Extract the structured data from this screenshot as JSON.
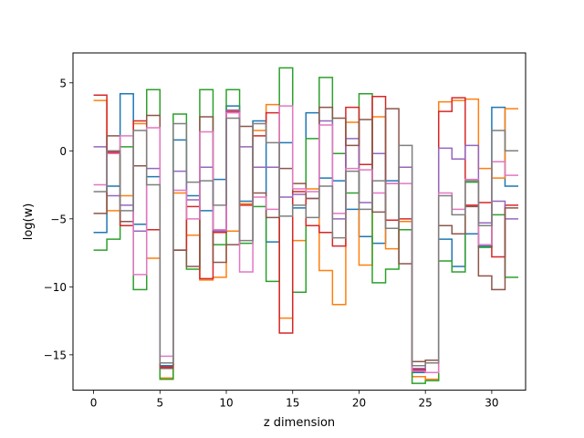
{
  "chart_data": {
    "type": "line",
    "step": "post",
    "xlabel": "z dimension",
    "ylabel": "log(w)",
    "xlim": [
      -1.55,
      32.55
    ],
    "ylim": [
      -17.6,
      7.2
    ],
    "xticks": [
      0,
      5,
      10,
      15,
      20,
      25,
      30
    ],
    "yticks": [
      5,
      0,
      -5,
      -10,
      -15
    ],
    "ytick_labels": [
      "5",
      "0",
      "−5",
      "−10",
      "−15"
    ],
    "grid": false,
    "legend": "none",
    "x": [
      0,
      1,
      2,
      3,
      4,
      5,
      6,
      7,
      8,
      9,
      10,
      11,
      12,
      13,
      14,
      15,
      16,
      17,
      18,
      19,
      20,
      21,
      22,
      23,
      24,
      25,
      26,
      27,
      28,
      29,
      30,
      31
    ],
    "series": [
      {
        "color": "#1f77b4",
        "values": [
          -6.0,
          -2.6,
          4.2,
          -5.4,
          -1.9,
          -15.8,
          0.8,
          -3.3,
          -4.4,
          -2.1,
          3.3,
          -3.7,
          2.2,
          -6.7,
          0.6,
          -4.2,
          2.8,
          -2.0,
          -2.2,
          -4.3,
          -6.3,
          -6.8,
          -2.2,
          -5.8,
          -16.3,
          -16.3,
          -6.5,
          -8.5,
          -6.1,
          -7.0,
          3.2,
          -2.6
        ]
      },
      {
        "color": "#ff7f0e",
        "values": [
          3.7,
          -4.4,
          -3.3,
          2.0,
          -7.9,
          -16.7,
          -3.1,
          -6.2,
          -9.5,
          -9.3,
          -5.9,
          -3.9,
          1.5,
          3.4,
          -12.3,
          -6.6,
          -2.8,
          -8.8,
          -11.3,
          2.1,
          -8.4,
          2.5,
          -7.2,
          -5.2,
          -16.6,
          -16.8,
          3.6,
          3.7,
          3.8,
          -1.3,
          -2.0,
          3.1
        ]
      },
      {
        "color": "#2ca02c",
        "values": [
          -7.3,
          -6.5,
          0.3,
          -10.2,
          4.5,
          -16.8,
          2.7,
          -8.7,
          4.5,
          -6.9,
          4.5,
          -6.8,
          -4.1,
          -9.6,
          6.1,
          -10.4,
          0.9,
          5.4,
          -0.2,
          -3.1,
          4.2,
          -9.7,
          -8.7,
          -5.8,
          -17.1,
          -16.9,
          -8.1,
          -8.9,
          -2.3,
          -7.1,
          -4.7,
          -9.3
        ]
      },
      {
        "color": "#d62728",
        "values": [
          4.1,
          -0.1,
          -5.5,
          2.2,
          -5.8,
          -15.9,
          -7.3,
          -4.1,
          -9.4,
          -6.0,
          2.9,
          -4.0,
          1.1,
          2.8,
          -13.4,
          -3.0,
          -5.5,
          -6.0,
          -7.0,
          3.2,
          -1.0,
          4.0,
          -5.1,
          -5.0,
          -16.1,
          -16.3,
          2.9,
          3.9,
          -4.0,
          -3.8,
          -7.8,
          -4.0
        ]
      },
      {
        "color": "#9467bd",
        "values": [
          0.3,
          -3.3,
          -4.0,
          -5.9,
          -1.3,
          -15.6,
          -1.5,
          -3.6,
          -1.2,
          -5.9,
          3.0,
          0.3,
          -1.2,
          -1.2,
          -3.4,
          -3.2,
          -3.5,
          2.2,
          -5.0,
          0.9,
          -3.8,
          -0.2,
          -2.4,
          -1.2,
          -16.0,
          -15.6,
          0.2,
          -0.6,
          0.4,
          -5.3,
          -3.7,
          -5.0
        ]
      },
      {
        "color": "#8c564b",
        "values": [
          -4.6,
          1.1,
          -5.2,
          -1.1,
          2.6,
          -16.0,
          -7.3,
          -8.5,
          2.5,
          -8.2,
          -6.9,
          1.8,
          -3.1,
          -4.9,
          -1.3,
          -2.4,
          -3.5,
          3.2,
          2.4,
          0.4,
          2.3,
          -4.5,
          3.1,
          -8.3,
          -15.5,
          -15.4,
          -5.5,
          -6.1,
          -4.1,
          -9.2,
          -10.2,
          -4.2
        ]
      },
      {
        "color": "#e377c2",
        "values": [
          -2.5,
          -0.2,
          1.1,
          -9.1,
          1.7,
          -15.1,
          -2.9,
          -5.0,
          1.4,
          -5.8,
          2.8,
          -8.9,
          -3.4,
          -4.3,
          3.3,
          -2.8,
          -3.0,
          1.9,
          -4.6,
          -1.3,
          -1.4,
          -3.1,
          -2.4,
          -2.4,
          -16.2,
          -16.3,
          -3.1,
          -4.3,
          -2.1,
          -6.9,
          -0.8,
          -1.8
        ]
      },
      {
        "color": "#7f7f7f",
        "values": [
          -3.0,
          0.0,
          -4.4,
          1.5,
          -2.5,
          -15.6,
          2.0,
          -2.3,
          -2.2,
          -4.0,
          2.4,
          -6.6,
          2.0,
          0.6,
          -4.8,
          -4.0,
          -4.9,
          -2.6,
          -6.4,
          -1.5,
          -4.3,
          -2.2,
          -5.7,
          0.4,
          -15.8,
          -15.6,
          -3.3,
          -4.7,
          -2.2,
          -5.5,
          1.5,
          0.0
        ]
      }
    ]
  }
}
